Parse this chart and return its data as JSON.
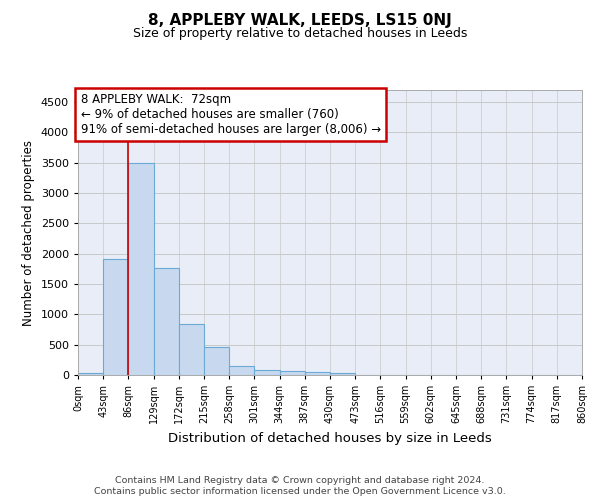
{
  "title": "8, APPLEBY WALK, LEEDS, LS15 0NJ",
  "subtitle": "Size of property relative to detached houses in Leeds",
  "xlabel": "Distribution of detached houses by size in Leeds",
  "ylabel": "Number of detached properties",
  "bin_labels": [
    "0sqm",
    "43sqm",
    "86sqm",
    "129sqm",
    "172sqm",
    "215sqm",
    "258sqm",
    "301sqm",
    "344sqm",
    "387sqm",
    "430sqm",
    "473sqm",
    "516sqm",
    "559sqm",
    "602sqm",
    "645sqm",
    "688sqm",
    "731sqm",
    "774sqm",
    "817sqm",
    "860sqm"
  ],
  "bar_values": [
    40,
    1920,
    3490,
    1770,
    840,
    455,
    155,
    90,
    60,
    52,
    35,
    0,
    0,
    0,
    0,
    0,
    0,
    0,
    0,
    0
  ],
  "bar_color": "#c8d9ef",
  "bar_edge_color": "#6aaad4",
  "grid_color": "#c8c8c8",
  "background_color": "#e8edf8",
  "annotation_line1": "8 APPLEBY WALK:  72sqm",
  "annotation_line2": "← 9% of detached houses are smaller (760)",
  "annotation_line3": "91% of semi-detached houses are larger (8,006) →",
  "annotation_box_facecolor": "#ffffff",
  "annotation_box_edgecolor": "#cc0000",
  "property_line_x": 2,
  "ylim": [
    0,
    4700
  ],
  "yticks": [
    0,
    500,
    1000,
    1500,
    2000,
    2500,
    3000,
    3500,
    4000,
    4500
  ],
  "footer_line1": "Contains HM Land Registry data © Crown copyright and database right 2024.",
  "footer_line2": "Contains public sector information licensed under the Open Government Licence v3.0."
}
